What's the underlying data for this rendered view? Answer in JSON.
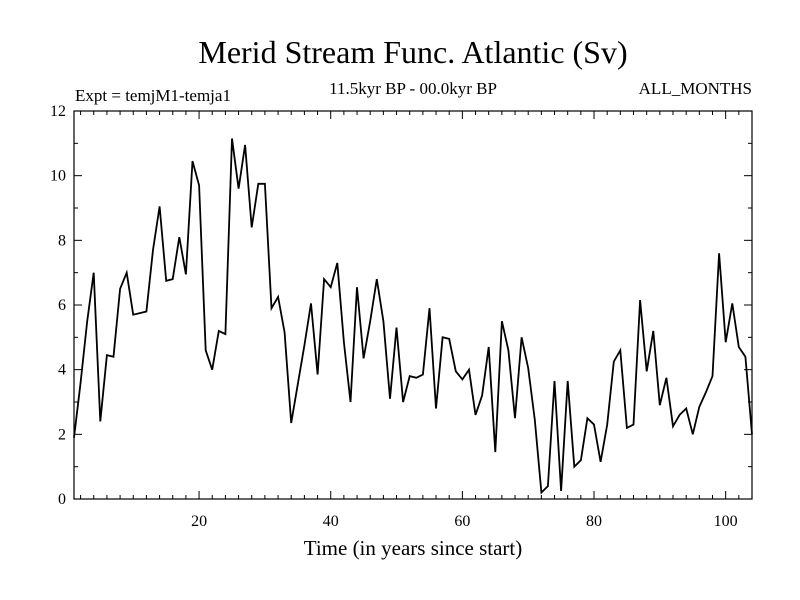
{
  "chart_data": {
    "type": "line",
    "title": "Merid Stream Func. Atlantic (Sv)",
    "subtitle_left": "Expt = temjM1-temja1",
    "subtitle_center": "11.5kyr BP - 00.0kyr BP",
    "subtitle_right": "ALL_MONTHS",
    "xlabel": "Time (in years since start)",
    "ylabel": "",
    "xlim": [
      1,
      104
    ],
    "ylim": [
      0,
      12
    ],
    "x_ticks": [
      20,
      40,
      60,
      80,
      100
    ],
    "y_ticks": [
      0,
      2,
      4,
      6,
      8,
      10,
      12
    ],
    "grid": false,
    "series": [
      {
        "name": "Merid Stream Func. Atlantic",
        "color": "#000000",
        "x": [
          1,
          2,
          3,
          4,
          5,
          6,
          7,
          8,
          9,
          10,
          11,
          12,
          13,
          14,
          15,
          16,
          17,
          18,
          19,
          20,
          21,
          22,
          23,
          24,
          25,
          26,
          27,
          28,
          29,
          30,
          31,
          32,
          33,
          34,
          35,
          36,
          37,
          38,
          39,
          40,
          41,
          42,
          43,
          44,
          45,
          46,
          47,
          48,
          49,
          50,
          51,
          52,
          53,
          54,
          55,
          56,
          57,
          58,
          59,
          60,
          61,
          62,
          63,
          64,
          65,
          66,
          67,
          68,
          69,
          70,
          71,
          72,
          73,
          74,
          75,
          76,
          77,
          78,
          79,
          80,
          81,
          82,
          83,
          84,
          85,
          86,
          87,
          88,
          89,
          90,
          91,
          92,
          93,
          94,
          95,
          96,
          97,
          98,
          99,
          100,
          101,
          102,
          103,
          104
        ],
        "y": [
          1.9,
          3.6,
          5.5,
          7.0,
          2.4,
          4.45,
          4.4,
          6.5,
          7.0,
          5.7,
          5.75,
          5.8,
          7.7,
          9.05,
          6.75,
          6.8,
          8.1,
          6.95,
          10.45,
          9.7,
          4.6,
          4.0,
          5.2,
          5.1,
          11.15,
          9.6,
          10.95,
          8.4,
          9.75,
          9.75,
          5.9,
          6.25,
          5.15,
          2.35,
          3.55,
          4.75,
          6.05,
          3.85,
          6.8,
          6.55,
          7.3,
          4.85,
          3.0,
          6.55,
          4.35,
          5.5,
          6.8,
          5.5,
          3.1,
          5.3,
          3.0,
          3.8,
          3.75,
          3.85,
          5.9,
          2.8,
          5.0,
          4.95,
          3.95,
          3.7,
          4.0,
          2.6,
          3.2,
          4.7,
          1.45,
          5.5,
          4.6,
          2.5,
          5.0,
          4.05,
          2.45,
          0.2,
          0.4,
          3.65,
          0.25,
          3.65,
          1.0,
          1.2,
          2.5,
          2.3,
          1.15,
          2.3,
          4.25,
          4.6,
          2.2,
          2.3,
          6.15,
          3.95,
          5.2,
          2.9,
          3.75,
          2.25,
          2.6,
          2.8,
          2.0,
          2.85,
          3.3,
          3.8,
          7.6,
          4.85,
          6.05,
          4.7,
          4.4,
          2.0
        ]
      }
    ]
  }
}
